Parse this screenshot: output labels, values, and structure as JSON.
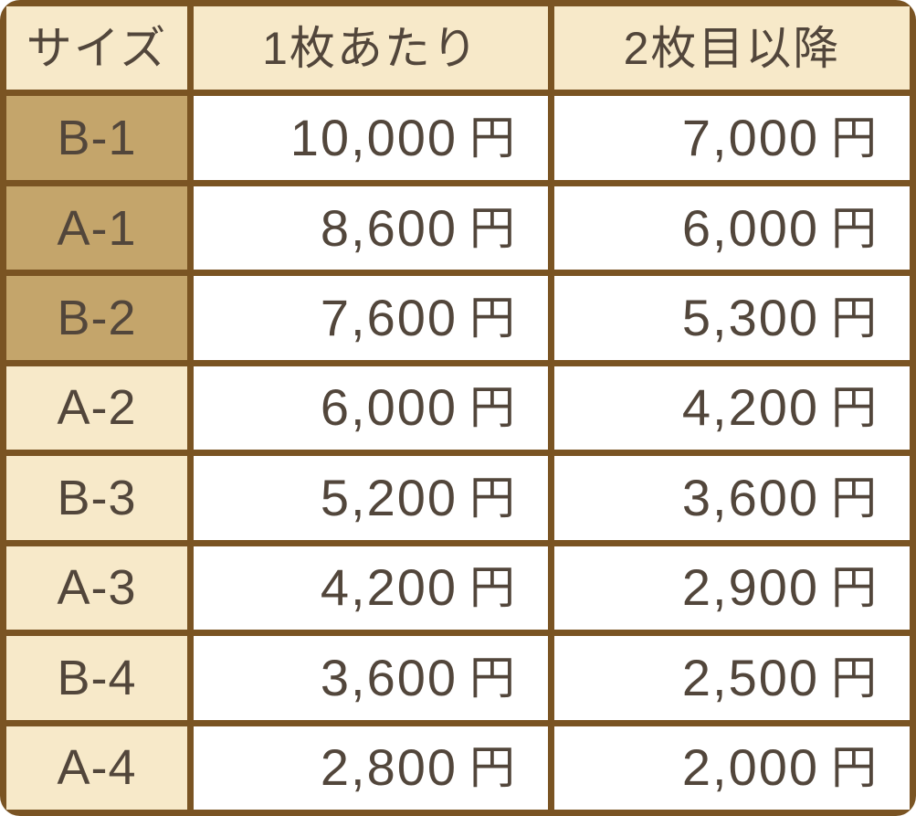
{
  "chart_data": {
    "type": "table",
    "columns": [
      "サイズ",
      "1枚あたり",
      "2枚目以降"
    ],
    "unit": "円",
    "rows": [
      {
        "size": "B-1",
        "per_sheet": "10,000",
        "second_onward": "7,000",
        "size_highlight": "tan"
      },
      {
        "size": "A-1",
        "per_sheet": "8,600",
        "second_onward": "6,000",
        "size_highlight": "tan"
      },
      {
        "size": "B-2",
        "per_sheet": "7,600",
        "second_onward": "5,300",
        "size_highlight": "tan"
      },
      {
        "size": "A-2",
        "per_sheet": "6,000",
        "second_onward": "4,200",
        "size_highlight": "plain"
      },
      {
        "size": "B-3",
        "per_sheet": "5,200",
        "second_onward": "3,600",
        "size_highlight": "plain"
      },
      {
        "size": "A-3",
        "per_sheet": "4,200",
        "second_onward": "2,900",
        "size_highlight": "plain"
      },
      {
        "size": "B-4",
        "per_sheet": "3,600",
        "second_onward": "2,500",
        "size_highlight": "plain"
      },
      {
        "size": "A-4",
        "per_sheet": "2,800",
        "second_onward": "2,000",
        "size_highlight": "plain"
      }
    ]
  },
  "colors": {
    "border": "#7a5423",
    "header-bg": "#f7e9c9",
    "highlight-bg": "#c4a56b",
    "cell-bg": "#ffffff",
    "text": "#52463b"
  }
}
